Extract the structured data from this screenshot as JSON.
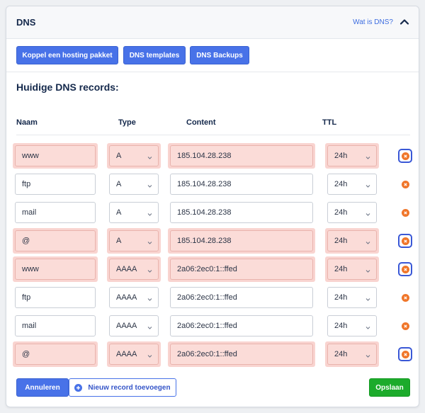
{
  "header": {
    "title": "DNS",
    "help_link": "Wat is DNS?",
    "collapse_icon": "chevron-up-icon"
  },
  "toolbar": {
    "buttons": [
      {
        "label": "Koppel een hosting pakket"
      },
      {
        "label": "DNS templates"
      },
      {
        "label": "DNS Backups"
      }
    ]
  },
  "records": {
    "title": "Huidige DNS records:",
    "columns": {
      "name": "Naam",
      "type": "Type",
      "content": "Content",
      "ttl": "TTL"
    },
    "rows": [
      {
        "name": "www",
        "type": "A",
        "content": "185.104.28.238",
        "ttl": "24h",
        "error": true
      },
      {
        "name": "ftp",
        "type": "A",
        "content": "185.104.28.238",
        "ttl": "24h",
        "error": false
      },
      {
        "name": "mail",
        "type": "A",
        "content": "185.104.28.238",
        "ttl": "24h",
        "error": false
      },
      {
        "name": "@",
        "type": "A",
        "content": "185.104.28.238",
        "ttl": "24h",
        "error": true
      },
      {
        "name": "www",
        "type": "AAAA",
        "content": "2a06:2ec0:1::ffed",
        "ttl": "24h",
        "error": true
      },
      {
        "name": "ftp",
        "type": "AAAA",
        "content": "2a06:2ec0:1::ffed",
        "ttl": "24h",
        "error": false
      },
      {
        "name": "mail",
        "type": "AAAA",
        "content": "2a06:2ec0:1::ffed",
        "ttl": "24h",
        "error": false
      },
      {
        "name": "@",
        "type": "AAAA",
        "content": "2a06:2ec0:1::ffed",
        "ttl": "24h",
        "error": true
      }
    ]
  },
  "footer": {
    "cancel_label": "Annuleren",
    "add_label": "Nieuw record toevoegen",
    "save_label": "Opslaan"
  },
  "colors": {
    "primary": "#4872e8",
    "success": "#1cab2b",
    "error_bg": "#f9d4d0",
    "delete_icon": "#f0762a",
    "error_outline": "#3a58d6"
  }
}
